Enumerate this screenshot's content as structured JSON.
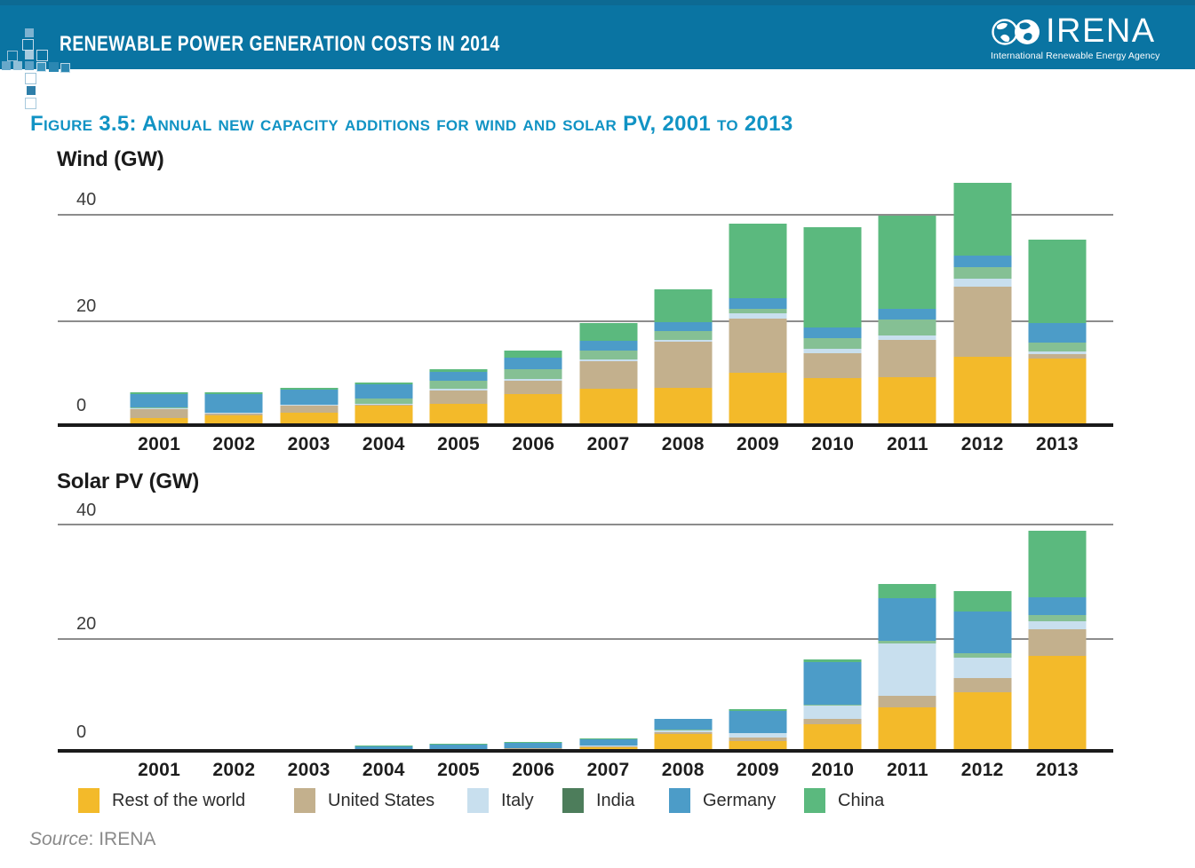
{
  "header": {
    "title": "RENEWABLE POWER GENERATION COSTS IN 2014",
    "logo": {
      "name": "IRENA",
      "subtitle": "International Renewable Energy Agency"
    }
  },
  "figure": {
    "label": "Figure 3.5:",
    "title": " Annual new capacity additions for wind and solar PV, 2001 to 2013"
  },
  "legend": {
    "items": [
      {
        "label": "Rest of the world",
        "color": "#f3ba2a"
      },
      {
        "label": "United States",
        "color": "#c3b08d"
      },
      {
        "label": "Italy",
        "color": "#c8dfee"
      },
      {
        "label": "India",
        "color": "#4d7d5b"
      },
      {
        "label": "Germany",
        "color": "#4c9cc8"
      },
      {
        "label": "China",
        "color": "#5bb97e"
      }
    ]
  },
  "source": {
    "italic": "Source",
    "rest": ": IRENA"
  },
  "colors": {
    "header_band": "#0a74a2",
    "figure_title": "#1193c4",
    "gridline": "#8c8c8c",
    "axis": "#1a1a1a"
  },
  "chart_data": [
    {
      "type": "bar",
      "stacked": true,
      "title": "Wind (GW)",
      "ylabel": "GW",
      "ylim": [
        0,
        40
      ],
      "yticks": [
        "40",
        "20",
        "0"
      ],
      "grid": "horizontal",
      "legend_position": "bottom",
      "categories": [
        "2001",
        "2002",
        "2003",
        "2004",
        "2005",
        "2006",
        "2007",
        "2008",
        "2009",
        "2010",
        "2011",
        "2012",
        "2013"
      ],
      "series": [
        {
          "name": "Rest of the world",
          "color": "#f3ba2a",
          "bar_color": "#f3ba2a",
          "values": [
            1.6,
            2.1,
            2.7,
            4.0,
            4.4,
            6.1,
            7.1,
            7.4,
            10.2,
            9.2,
            9.4,
            13.1,
            12.8
          ]
        },
        {
          "name": "United States",
          "color": "#c3b08d",
          "bar_color": "#c3b08d",
          "values": [
            1.75,
            0.4,
            1.3,
            0.25,
            2.4,
            2.5,
            5.3,
            8.6,
            10.1,
            4.7,
            6.9,
            13.3,
            0.8
          ]
        },
        {
          "name": "Italy",
          "color": "#c8dfee",
          "bar_color": "#c8dfee",
          "values": [
            0.1,
            0.1,
            0.1,
            0.1,
            0.4,
            0.4,
            0.3,
            0.4,
            1.1,
            0.8,
            0.8,
            1.4,
            0.55
          ]
        },
        {
          "name": "India",
          "color": "#4d7d5b",
          "bar_color": "#85c094",
          "values": [
            0.2,
            0.15,
            0.15,
            1.0,
            1.4,
            1.8,
            1.7,
            1.6,
            0.8,
            2.0,
            3.1,
            2.2,
            1.7
          ]
        },
        {
          "name": "Germany",
          "color": "#4c9cc8",
          "bar_color": "#4c9cc8",
          "values": [
            2.5,
            3.5,
            2.7,
            2.6,
            1.8,
            2.2,
            1.7,
            1.6,
            1.9,
            1.9,
            1.9,
            2.2,
            3.6
          ]
        },
        {
          "name": "China",
          "color": "#5bb97e",
          "bar_color": "#5bb97e",
          "values": [
            0.3,
            0.3,
            0.35,
            0.4,
            0.5,
            1.3,
            3.4,
            6.2,
            14.0,
            18.9,
            17.5,
            13.6,
            15.8
          ]
        }
      ]
    },
    {
      "type": "bar",
      "stacked": true,
      "title": "Solar PV (GW)",
      "ylabel": "GW",
      "ylim": [
        0,
        40
      ],
      "yticks": [
        "40",
        "20",
        "0"
      ],
      "grid": "horizontal",
      "legend_position": "bottom",
      "categories": [
        "2001",
        "2002",
        "2003",
        "2004",
        "2005",
        "2006",
        "2007",
        "2008",
        "2009",
        "2010",
        "2011",
        "2012",
        "2013"
      ],
      "series": [
        {
          "name": "Rest of the world",
          "color": "#f3ba2a",
          "bar_color": "#f3ba2a",
          "values": [
            0.12,
            0.12,
            0.15,
            0.3,
            0.45,
            0.6,
            0.9,
            3.3,
            2.0,
            4.9,
            7.9,
            10.5,
            16.9
          ]
        },
        {
          "name": "United States",
          "color": "#c3b08d",
          "bar_color": "#c3b08d",
          "values": [
            0.02,
            0.03,
            0.04,
            0.06,
            0.08,
            0.12,
            0.18,
            0.3,
            0.6,
            1.0,
            2.0,
            2.5,
            4.7
          ]
        },
        {
          "name": "Italy",
          "color": "#c8dfee",
          "bar_color": "#c8dfee",
          "values": [
            0.0,
            0.01,
            0.01,
            0.01,
            0.02,
            0.02,
            0.1,
            0.35,
            0.75,
            2.3,
            9.2,
            3.6,
            1.4
          ]
        },
        {
          "name": "India",
          "color": "#4d7d5b",
          "bar_color": "#85c094",
          "values": [
            0.0,
            0.01,
            0.01,
            0.01,
            0.01,
            0.01,
            0.01,
            0.02,
            0.03,
            0.15,
            0.4,
            0.8,
            1.0
          ]
        },
        {
          "name": "Germany",
          "color": "#4c9cc8",
          "bar_color": "#4c9cc8",
          "values": [
            0.1,
            0.15,
            0.2,
            0.7,
            0.9,
            0.95,
            1.2,
            1.9,
            3.9,
            7.4,
            7.5,
            7.3,
            3.1
          ]
        },
        {
          "name": "China",
          "color": "#5bb97e",
          "bar_color": "#5bb97e",
          "values": [
            0.08,
            0.2,
            0.25,
            0.1,
            0.1,
            0.15,
            0.1,
            0.1,
            0.3,
            0.5,
            2.5,
            3.6,
            11.6
          ]
        }
      ]
    }
  ]
}
